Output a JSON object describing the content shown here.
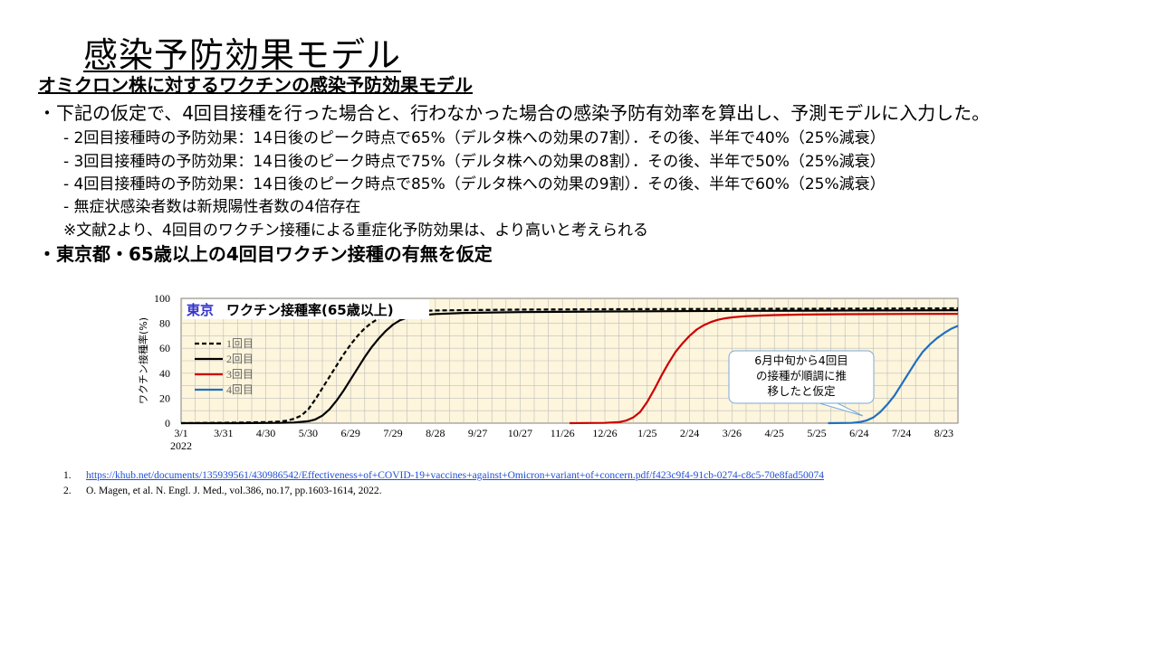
{
  "title": "感染予防効果モデル",
  "subtitle": "オミクロン株に対するワクチンの感染予防効果モデル",
  "bullets": [
    "・下記の仮定で、4回目接種を行った場合と、行わなかった場合の感染予防有効率を算出し、予測モデルに入力した。",
    "・東京都・65歳以上の4回目ワクチン接種の有無を仮定"
  ],
  "sub_items": [
    "- 2回目接種時の予防効果：14日後のピーク時点で65%（デルタ株への効果の7割）．その後、半年で40%（25%減衰）",
    "- 3回目接種時の予防効果：14日後のピーク時点で75%（デルタ株への効果の8割）．その後、半年で50%（25%減衰）",
    "- 4回目接種時の予防効果：14日後のピーク時点で85%（デルタ株への効果の9割）．その後、半年で60%（25%減衰）",
    "- 無症状感染者数は新規陽性者数の4倍存在",
    "※文献2より、4回目のワクチン接種による重症化予防効果は、より高いと考えられる"
  ],
  "chart_data": {
    "type": "line",
    "title_place": "東京",
    "title_text": "ワクチン接種率(65歳以上)",
    "ylabel": "ワクチン接種率(%)",
    "ylim": [
      0,
      100
    ],
    "yticks": [
      0,
      20,
      40,
      60,
      80,
      100
    ],
    "x_start_label_year": "2022",
    "xticks": [
      "3/1",
      "3/31",
      "4/30",
      "5/30",
      "6/29",
      "7/29",
      "8/28",
      "9/27",
      "10/27",
      "11/26",
      "12/26",
      "1/25",
      "2/24",
      "3/26",
      "4/25",
      "5/25",
      "6/24",
      "7/24",
      "8/23"
    ],
    "xticks_day": [
      0,
      30,
      60,
      90,
      120,
      150,
      180,
      210,
      240,
      270,
      300,
      330,
      360,
      390,
      420,
      450,
      480,
      510,
      540
    ],
    "xlim_day": [
      0,
      550
    ],
    "x_unit": "days since 3/1/2022",
    "grid": true,
    "legend_position": "left",
    "annotation": "6月中旬から4回目\nの接種が順調に推\n移したと仮定",
    "colors": {
      "bg": "#fdf5dc",
      "grid": "#bdbdbd",
      "title_place": "#3333cc"
    },
    "series": [
      {
        "name": "1回目",
        "color": "#000000",
        "dash": true,
        "x": [
          0,
          20,
          40,
          60,
          70,
          75,
          80,
          85,
          90,
          95,
          100,
          105,
          110,
          115,
          120,
          125,
          130,
          135,
          140,
          145,
          150,
          155,
          160,
          170,
          180,
          200,
          240,
          300,
          400,
          480,
          550
        ],
        "y": [
          0,
          0.2,
          0.4,
          0.8,
          1.3,
          2,
          3.5,
          6,
          11,
          19,
          28,
          37,
          46,
          55,
          63,
          70,
          76,
          80.5,
          84,
          86.5,
          88,
          89,
          89.6,
          90,
          90.3,
          90.6,
          91,
          91.3,
          91.6,
          91.8,
          92
        ]
      },
      {
        "name": "2回目",
        "color": "#000000",
        "dash": false,
        "x": [
          0,
          40,
          70,
          80,
          90,
          95,
          100,
          105,
          110,
          115,
          120,
          125,
          130,
          135,
          140,
          145,
          150,
          155,
          160,
          165,
          170,
          180,
          200,
          240,
          300,
          400,
          480,
          550
        ],
        "y": [
          0,
          0,
          0.2,
          0.5,
          1.5,
          3,
          6,
          11,
          18,
          26,
          35,
          44,
          53,
          61,
          68,
          74,
          79,
          82.5,
          84.5,
          85.8,
          86.5,
          87.5,
          88.3,
          89,
          89.5,
          90,
          90.3,
          90.5
        ]
      },
      {
        "name": "3回目",
        "color": "#cc0000",
        "dash": false,
        "x": [
          275,
          300,
          310,
          315,
          320,
          325,
          330,
          335,
          340,
          345,
          350,
          355,
          360,
          365,
          370,
          375,
          380,
          385,
          390,
          395,
          400,
          410,
          420,
          440,
          470,
          500,
          550
        ],
        "y": [
          0,
          0.2,
          0.8,
          2,
          4.5,
          9,
          17,
          27,
          38,
          48,
          57,
          64,
          70,
          75,
          78.5,
          81,
          82.8,
          84,
          84.8,
          85.3,
          85.7,
          86.2,
          86.6,
          87,
          87.3,
          87.5,
          87.6
        ]
      },
      {
        "name": "4回目",
        "color": "#1f6fbf",
        "dash": false,
        "x": [
          458,
          475,
          480,
          485,
          490,
          495,
          500,
          505,
          510,
          515,
          520,
          525,
          530,
          535,
          540,
          545,
          550
        ],
        "y": [
          0,
          0.2,
          0.8,
          2,
          4.5,
          9,
          15,
          22,
          31,
          40,
          49,
          57,
          63,
          68,
          72,
          75.5,
          78
        ]
      }
    ]
  },
  "references": [
    {
      "num": "1.",
      "text": "https://khub.net/documents/135939561/430986542/Effectiveness+of+COVID-19+vaccines+against+Omicron+variant+of+concern.pdf/f423c9f4-91cb-0274-c8c5-70e8fad50074"
    },
    {
      "num": "2.",
      "text": "O. Magen, et al. N. Engl. J. Med., vol.386, no.17, pp.1603-1614, 2022."
    }
  ]
}
